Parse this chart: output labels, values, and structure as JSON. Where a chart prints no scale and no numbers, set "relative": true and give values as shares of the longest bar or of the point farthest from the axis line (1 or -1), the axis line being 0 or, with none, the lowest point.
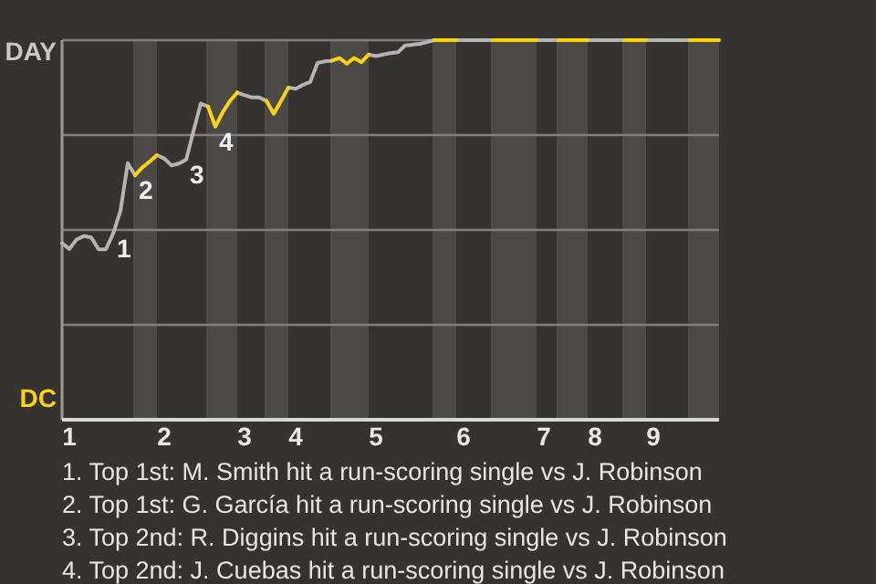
{
  "chart_data": {
    "type": "line",
    "categories": [
      null,
      "1",
      null,
      null,
      null,
      null,
      null,
      null,
      null,
      null,
      null,
      null,
      null,
      null,
      "2",
      null,
      null,
      null,
      null,
      null,
      null,
      null,
      null,
      null,
      null,
      "3",
      null,
      null,
      null,
      null,
      null,
      null,
      "4",
      null,
      null,
      null,
      null,
      null,
      null,
      null,
      null,
      null,
      null,
      "5",
      null,
      null,
      null,
      null,
      null,
      null,
      null,
      null,
      null,
      null,
      null,
      "6",
      null,
      null,
      null,
      null,
      null,
      null,
      null,
      null,
      null,
      null,
      "7",
      null,
      null,
      null,
      null,
      null,
      null,
      "8",
      null,
      null,
      null,
      null,
      null,
      null,
      null,
      "9",
      null,
      null,
      null,
      null,
      null,
      null,
      null,
      null,
      null
    ],
    "series": [
      {
        "color": "#b4b4b4",
        "values": [
          0.465,
          0.45,
          0.475,
          0.484,
          0.48,
          0.449,
          0.449,
          0.49,
          0.55,
          0.676,
          0.644,
          null,
          null,
          0.697,
          0.688,
          0.67,
          0.675,
          0.685,
          0.76,
          0.833,
          0.825,
          null,
          null,
          null,
          0.862,
          0.855,
          0.849,
          0.849,
          0.84,
          null,
          null,
          0.875,
          0.872,
          0.882,
          0.89,
          0.94,
          0.944,
          0.946,
          null,
          null,
          null,
          null,
          0.962,
          0.958,
          0.962,
          0.966,
          0.968,
          0.986,
          0.988,
          0.99,
          0.995,
          1,
          null,
          null,
          1,
          1,
          1,
          1,
          1,
          1,
          null,
          null,
          null,
          null,
          null,
          1,
          1,
          1,
          1,
          null,
          null,
          null,
          1,
          1,
          1,
          1,
          1,
          1,
          null,
          null,
          1,
          1,
          1,
          1,
          1,
          1,
          1,
          null,
          null,
          null,
          null
        ]
      },
      {
        "color": "#ffd400",
        "values": [
          null,
          null,
          null,
          null,
          null,
          null,
          null,
          null,
          null,
          null,
          0.644,
          0.665,
          0.68,
          0.697,
          null,
          null,
          null,
          null,
          null,
          null,
          0.825,
          0.772,
          0.81,
          0.84,
          0.862,
          null,
          null,
          null,
          0.84,
          0.806,
          0.84,
          0.875,
          null,
          null,
          null,
          null,
          null,
          0.946,
          0.953,
          0.938,
          0.953,
          0.942,
          0.962,
          null,
          null,
          null,
          null,
          null,
          null,
          null,
          null,
          1,
          1,
          1,
          1,
          null,
          null,
          null,
          null,
          1,
          1,
          1,
          1,
          1,
          1,
          1,
          null,
          null,
          1,
          1,
          1,
          1,
          1,
          null,
          null,
          null,
          null,
          1,
          1,
          1,
          1,
          null,
          null,
          null,
          null,
          null,
          1,
          1,
          1,
          1,
          1
        ]
      }
    ],
    "relative": true,
    "ref_lines": [
      {
        "axis": "y",
        "value": 0.25,
        "color": "#808080"
      },
      {
        "axis": "y",
        "value": 0.5,
        "color": "#808080"
      },
      {
        "axis": "y",
        "value": 0.75,
        "color": "#808080"
      },
      {
        "axis": "y",
        "value": 1,
        "color": "#808080"
      }
    ],
    "annotations": [
      "DAY",
      "DC",
      {
        "text": "1",
        "y": 0.49
      },
      {
        "text": "2",
        "y": 0.644
      },
      {
        "text": "3",
        "y": 0.685
      },
      {
        "text": "4",
        "y": 0.772
      },
      "1. Top 1st: M. Smith hit a run-scoring single vs J. Robinson",
      "2. Top 1st: G. García hit a run-scoring single vs J. Robinson",
      "3. Top 2nd: R. Diggins hit a run-scoring single vs J. Robinson",
      "4. Top 2nd: J. Cuebas hit a run-scoring single vs J. Robinson"
    ]
  }
}
